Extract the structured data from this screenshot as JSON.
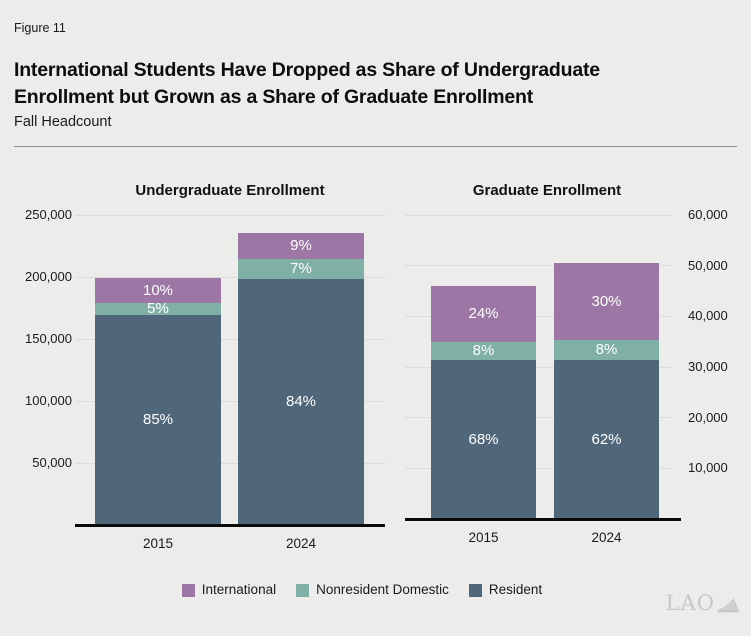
{
  "header": {
    "figure_label": "Figure 11",
    "title_line1": "International Students Have Dropped as Share of Undergraduate",
    "title_line2": "Enrollment but Grown as a Share of Graduate Enrollment",
    "subtitle": "Fall Headcount"
  },
  "colors": {
    "background": "#ecedeb",
    "international": "#9c77a6",
    "nonresident_domestic": "#80b0a5",
    "resident": "#506779",
    "gridline": "#dcdcda",
    "axis": "#0a0a0a"
  },
  "chart_data": [
    {
      "type": "bar",
      "subtype": "stacked",
      "title": "Undergraduate Enrollment",
      "categories": [
        "2015",
        "2024"
      ],
      "series": [
        {
          "name": "Resident",
          "color": "#506779",
          "values": [
            169000,
            198000
          ],
          "percent_labels": [
            "85%",
            "84%"
          ]
        },
        {
          "name": "Nonresident Domestic",
          "color": "#80b0a5",
          "values": [
            10000,
            16500
          ],
          "percent_labels": [
            "5%",
            "7%"
          ]
        },
        {
          "name": "International",
          "color": "#9c77a6",
          "values": [
            20000,
            21000
          ],
          "percent_labels": [
            "10%",
            "9%"
          ]
        }
      ],
      "totals_estimated": [
        199000,
        235500
      ],
      "ylim": [
        0,
        250000
      ],
      "ytick_values": [
        50000,
        100000,
        150000,
        200000,
        250000
      ],
      "ytick_labels": [
        "50,000",
        "100,000",
        "150,000",
        "200,000",
        "250,000"
      ],
      "axis_side": "left",
      "grid": true
    },
    {
      "type": "bar",
      "subtype": "stacked",
      "title": "Graduate Enrollment",
      "categories": [
        "2015",
        "2024"
      ],
      "series": [
        {
          "name": "Resident",
          "color": "#506779",
          "values": [
            31300,
            31300
          ],
          "percent_labels": [
            "68%",
            "62%"
          ]
        },
        {
          "name": "Nonresident Domestic",
          "color": "#80b0a5",
          "values": [
            3700,
            4000
          ],
          "percent_labels": [
            "8%",
            "8%"
          ]
        },
        {
          "name": "International",
          "color": "#9c77a6",
          "values": [
            11000,
            15200
          ],
          "percent_labels": [
            "24%",
            "30%"
          ]
        }
      ],
      "totals_estimated": [
        46000,
        50500
      ],
      "ylim": [
        0,
        60000
      ],
      "ytick_values": [
        10000,
        20000,
        30000,
        40000,
        50000,
        60000
      ],
      "ytick_labels": [
        "10,000",
        "20,000",
        "30,000",
        "40,000",
        "50,000",
        "60,000"
      ],
      "axis_side": "right",
      "grid": true
    }
  ],
  "legend": {
    "items": [
      {
        "label": "International",
        "color": "#9c77a6"
      },
      {
        "label": "Nonresident Domestic",
        "color": "#80b0a5"
      },
      {
        "label": "Resident",
        "color": "#506779"
      }
    ]
  },
  "logo": {
    "text": "LAO"
  }
}
